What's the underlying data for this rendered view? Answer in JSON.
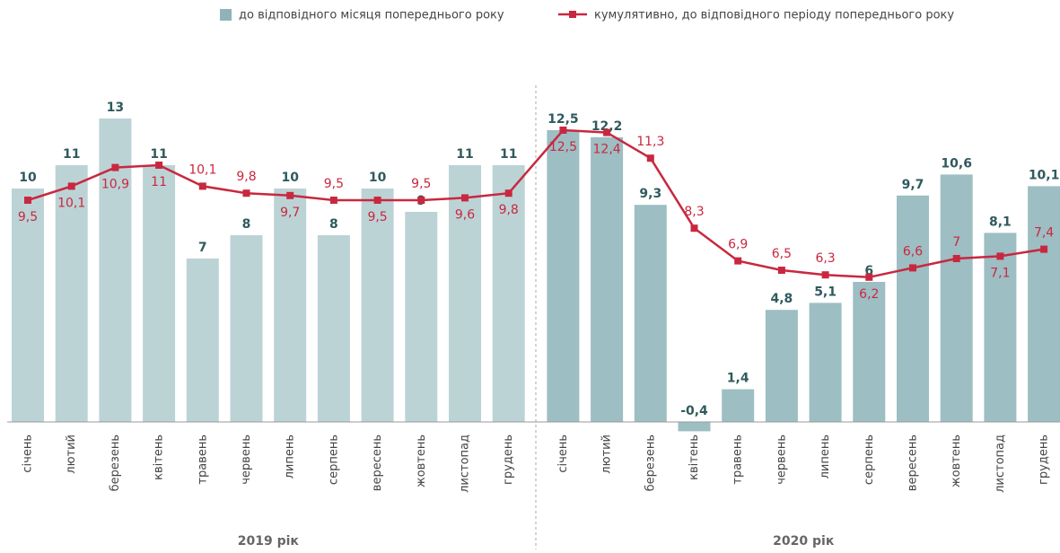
{
  "chart_data": {
    "type": "bar_line",
    "categories": [
      "січень",
      "лютий",
      "березень",
      "квітень",
      "травень",
      "червень",
      "липень",
      "серпень",
      "вересень",
      "жовтень",
      "листопад",
      "грудень",
      "січень",
      "лютий",
      "березень",
      "квітень",
      "травень",
      "червень",
      "липень",
      "серпень",
      "вересень",
      "жовтень",
      "листопад",
      "грудень"
    ],
    "groups": [
      "2019 рік",
      "2020 рік"
    ],
    "series": [
      {
        "name": "до відповідного місяця попереднього року",
        "type": "bar",
        "color": "#8fb3b9",
        "colors": [
          "#bcd3d6",
          "#bcd3d6",
          "#bcd3d6",
          "#bcd3d6",
          "#bcd3d6",
          "#bcd3d6",
          "#bcd3d6",
          "#bcd3d6",
          "#bcd3d6",
          "#bcd3d6",
          "#bcd3d6",
          "#bcd3d6",
          "#9dbec3",
          "#9dbec3",
          "#9dbec3",
          "#9dbec3",
          "#9dbec3",
          "#9dbec3",
          "#9dbec3",
          "#9dbec3",
          "#9dbec3",
          "#9dbec3",
          "#9dbec3",
          "#9dbec3"
        ],
        "values": [
          10,
          11,
          13,
          11,
          7,
          8,
          10,
          8,
          10,
          9,
          11,
          11,
          12.5,
          12.2,
          9.3,
          -0.4,
          1.4,
          4.8,
          5.1,
          6,
          9.7,
          10.6,
          8.1,
          10.1
        ],
        "value_labels": [
          "10",
          "11",
          "13",
          "11",
          "7",
          "8",
          "10",
          "8",
          "10",
          "9",
          "11",
          "11",
          "12,5",
          "12,2",
          "9,3",
          "-0,4",
          "1,4",
          "4,8",
          "5,1",
          "6",
          "9,7",
          "10,6",
          "8,1",
          "10,1"
        ]
      },
      {
        "name": "кумулятивно, до відповідного періоду попереднього року",
        "type": "line",
        "color": "#c8283f",
        "values": [
          9.5,
          10.1,
          10.9,
          11,
          10.1,
          9.8,
          9.7,
          9.5,
          9.5,
          9.5,
          9.6,
          9.8,
          12.5,
          12.4,
          11.3,
          8.3,
          6.9,
          6.5,
          6.3,
          6.2,
          6.6,
          7,
          7.1,
          7.4
        ],
        "value_labels": [
          "9,5",
          "10,1",
          "10,9",
          "11",
          "10,1",
          "9,8",
          "9,7",
          "9,5",
          "9,5",
          "9,5",
          "9,6",
          "9,8",
          "12,5",
          "12,4",
          "11,3",
          "8,3",
          "6,9",
          "6,5",
          "6,3",
          "6,2",
          "6,6",
          "7",
          "7,1",
          "7,4"
        ]
      }
    ],
    "ylim": [
      -1,
      14
    ]
  }
}
